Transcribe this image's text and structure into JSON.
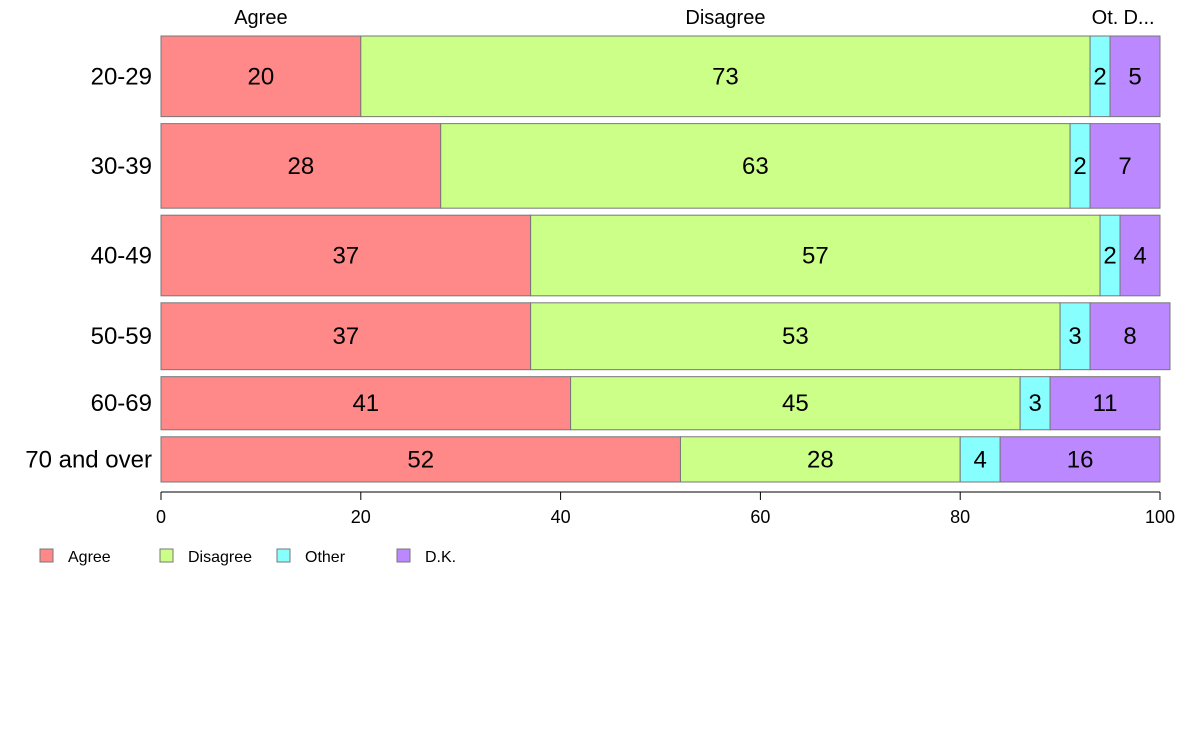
{
  "chart_data": {
    "type": "bar",
    "orientation": "horizontal",
    "stacked": true,
    "categories": [
      "20-29",
      "30-39",
      "40-49",
      "50-59",
      "60-69",
      "70 and over"
    ],
    "series": [
      {
        "name": "Agree",
        "color": "#ff8888",
        "values": [
          20,
          28,
          37,
          37,
          41,
          52
        ]
      },
      {
        "name": "Disagree",
        "color": "#ccff88",
        "values": [
          73,
          63,
          57,
          53,
          45,
          28
        ]
      },
      {
        "name": "Other",
        "color": "#88ffff",
        "values": [
          2,
          2,
          2,
          3,
          3,
          4
        ]
      },
      {
        "name": "D.K.",
        "color": "#bb88ff",
        "values": [
          5,
          7,
          4,
          8,
          11,
          16
        ]
      }
    ],
    "top_labels": [
      "Agree",
      "Disagree",
      "Ot.",
      "D..."
    ],
    "xlim": [
      0,
      100
    ],
    "xticks": [
      0,
      20,
      40,
      60,
      80,
      100
    ],
    "row_weights": [
      82,
      86,
      82,
      68,
      54,
      46
    ],
    "grid": false,
    "legend": "bottom-left"
  }
}
